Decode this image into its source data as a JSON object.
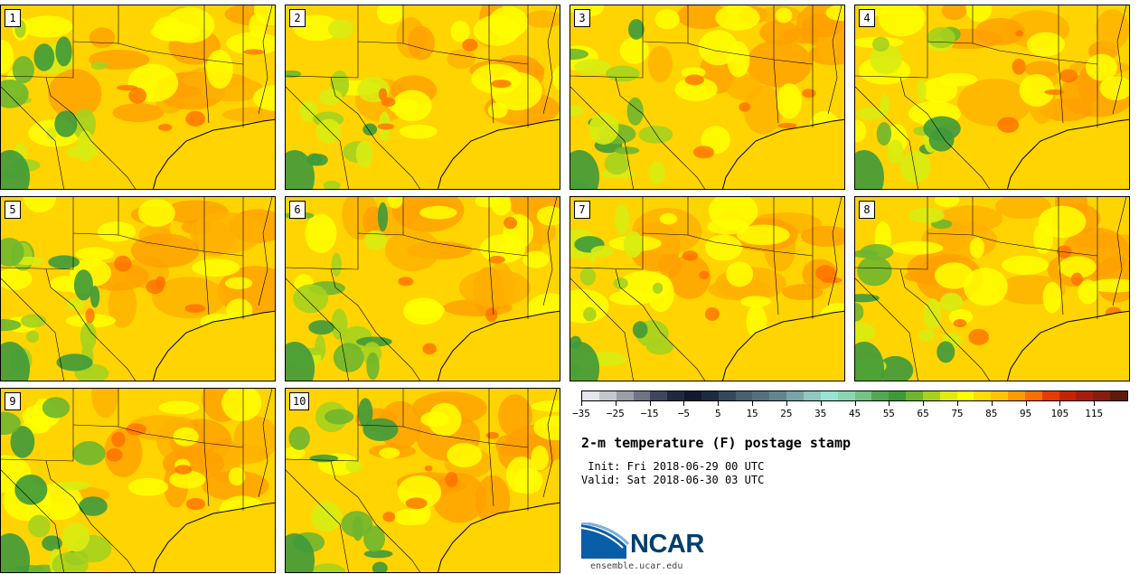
{
  "members": [
    "1",
    "2",
    "3",
    "4",
    "5",
    "6",
    "7",
    "8",
    "9",
    "10"
  ],
  "colorbar": {
    "colors": [
      "#e5e6ec",
      "#c3c6ce",
      "#9a9faa",
      "#6e7585",
      "#3e475c",
      "#1f2a3f",
      "#0f1a2e",
      "#1e2c42",
      "#36485c",
      "#4a6070",
      "#56707f",
      "#62868f",
      "#77a5a8",
      "#8fc7c2",
      "#96e3d2",
      "#8cd5b0",
      "#73c384",
      "#52a952",
      "#3f9a3b",
      "#6fb62e",
      "#a6d21e",
      "#e2ea12",
      "#ffff00",
      "#ffdd00",
      "#ffc300",
      "#ff9d00",
      "#ff6f00",
      "#e63c00",
      "#c42500",
      "#a81c0d",
      "#8a1b0f",
      "#5e1a0a"
    ],
    "ticks": [
      "−35",
      "−25",
      "−15",
      "−5",
      "5",
      "15",
      "25",
      "35",
      "45",
      "55",
      "65",
      "75",
      "85",
      "95",
      "105",
      "115"
    ]
  },
  "title": "2-m temperature (F) postage stamp",
  "init": " Init: Fri 2018-06-29 00 UTC",
  "valid": "Valid: Sat 2018-06-30 03 UTC",
  "logo": {
    "text": "NCAR",
    "site": "ensemble.ucar.edu"
  }
}
